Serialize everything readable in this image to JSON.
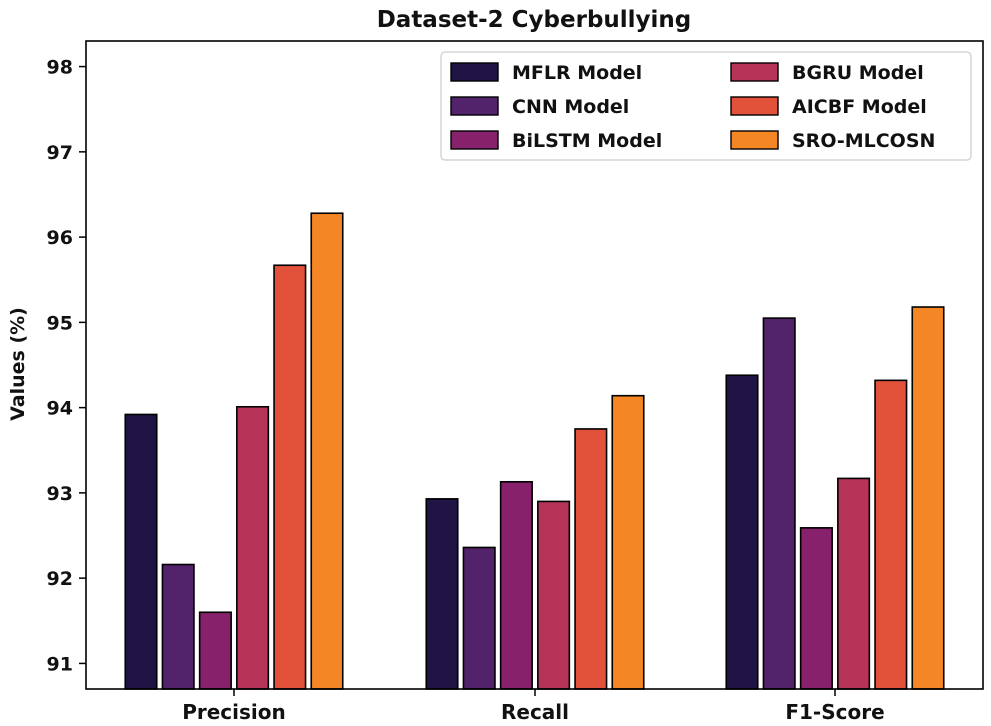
{
  "chart_data": {
    "type": "bar",
    "title": "Dataset-2 Cyberbullying",
    "xlabel": "",
    "ylabel": "Values (%)",
    "ylim": [
      90.7,
      98.3
    ],
    "yticks": [
      91,
      92,
      93,
      94,
      95,
      96,
      97,
      98
    ],
    "categories": [
      "Precision",
      "Recall",
      "F1-Score"
    ],
    "series": [
      {
        "name": "MFLR Model",
        "color": "#1f1443",
        "values": [
          93.92,
          92.93,
          94.38
        ]
      },
      {
        "name": "CNN Model",
        "color": "#52236b",
        "values": [
          92.16,
          92.36,
          95.05
        ]
      },
      {
        "name": "BiLSTM Model",
        "color": "#87216b",
        "values": [
          91.6,
          93.13,
          92.59
        ]
      },
      {
        "name": "BGRU Model",
        "color": "#b73459",
        "values": [
          94.01,
          92.9,
          93.17
        ]
      },
      {
        "name": "AICBF Model",
        "color": "#e2513a",
        "values": [
          95.67,
          93.75,
          94.32
        ]
      },
      {
        "name": "SRO-MLCOSN",
        "color": "#f48625",
        "values": [
          96.28,
          94.14,
          95.18
        ]
      }
    ],
    "legend": {
      "position": "top-right",
      "columns": 2
    }
  }
}
